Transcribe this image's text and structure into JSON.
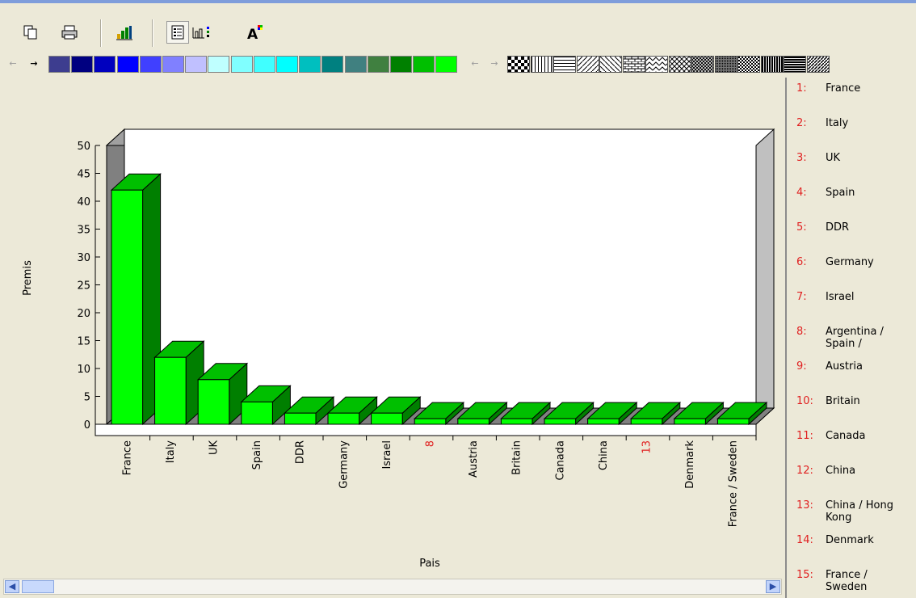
{
  "toolbar": {
    "buttons": [
      {
        "icon": "copy-icon"
      },
      {
        "icon": "print-icon"
      },
      {
        "icon": "chart-type-icon"
      },
      {
        "icon": "legend-icon"
      },
      {
        "icon": "data-series-icon"
      },
      {
        "icon": "font-icon"
      }
    ]
  },
  "palette": {
    "colors": [
      "#3d3d8f",
      "#000080",
      "#0000bf",
      "#0000ff",
      "#4040ff",
      "#8080ff",
      "#c0c0ff",
      "#bfffff",
      "#80ffff",
      "#40ffff",
      "#00ffff",
      "#00bfbf",
      "#008080",
      "#408080",
      "#408040",
      "#008000",
      "#00bf00",
      "#00ff00"
    ],
    "patterns": [
      "checker",
      "vertical",
      "horizontal",
      "diagonal-fwd",
      "diagonal-back",
      "brick",
      "zigzag",
      "crosshatch",
      "diag-cross",
      "dense-dots",
      "dense-checker",
      "vertical-dense",
      "horizontal-dense",
      "diagonal-dense"
    ]
  },
  "chart_data": {
    "type": "bar",
    "xlabel": "Pais",
    "ylabel": "Premis",
    "ylim": [
      0,
      50
    ],
    "yticks": [
      0,
      5,
      10,
      15,
      20,
      25,
      30,
      35,
      40,
      45,
      50
    ],
    "categories": [
      "France",
      "Italy",
      "UK",
      "Spain",
      "DDR",
      "Germany",
      "Israel",
      "8",
      "Austria",
      "Britain",
      "Canada",
      "China",
      "13",
      "Denmark",
      "France / Sweden"
    ],
    "values": [
      42,
      12,
      8,
      4,
      2,
      2,
      2,
      1,
      1,
      1,
      1,
      1,
      1,
      1,
      1
    ],
    "red_tick_labels": [
      "8",
      "13"
    ],
    "bar_color": "#00ff00",
    "bar_side_color": "#007f00",
    "bar_top_color": "#00bf00",
    "grid": false,
    "legend": "right"
  },
  "legend": [
    {
      "num": "1:",
      "label": "France"
    },
    {
      "num": "2:",
      "label": "Italy"
    },
    {
      "num": "3:",
      "label": "UK"
    },
    {
      "num": "4:",
      "label": "Spain"
    },
    {
      "num": "5:",
      "label": "DDR"
    },
    {
      "num": "6:",
      "label": "Germany"
    },
    {
      "num": "7:",
      "label": "Israel"
    },
    {
      "num": "8:",
      "label": "Argentina / Spain /"
    },
    {
      "num": "9:",
      "label": "Austria"
    },
    {
      "num": "10:",
      "label": "Britain"
    },
    {
      "num": "11:",
      "label": "Canada"
    },
    {
      "num": "12:",
      "label": "China"
    },
    {
      "num": "13:",
      "label": "China / Hong Kong"
    },
    {
      "num": "14:",
      "label": "Denmark"
    },
    {
      "num": "15:",
      "label": "France / Sweden"
    }
  ]
}
